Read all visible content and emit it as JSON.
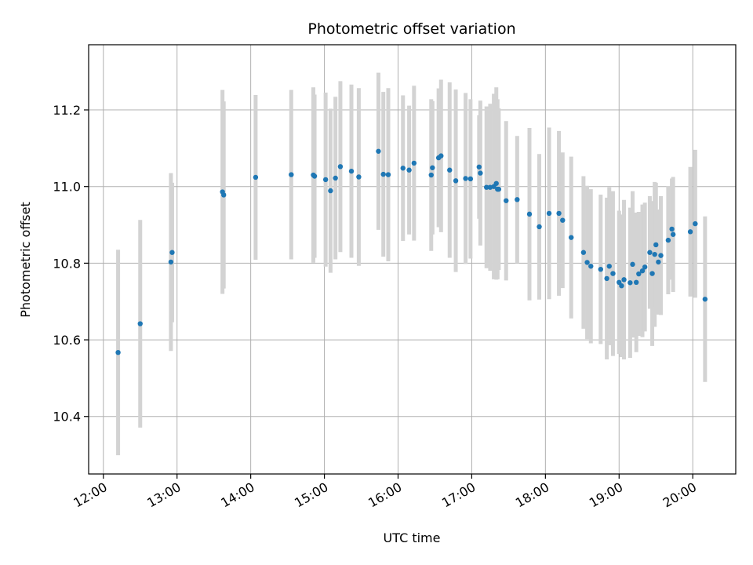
{
  "chart_data": {
    "type": "scatter",
    "title": "Photometric offset variation",
    "xlabel": "UTC time",
    "ylabel": "Photometric offset",
    "x_ticks": [
      "12:00",
      "13:00",
      "14:00",
      "15:00",
      "16:00",
      "17:00",
      "18:00",
      "19:00",
      "20:00"
    ],
    "y_ticks": [
      "10.4",
      "10.6",
      "10.8",
      "11.0",
      "11.2"
    ],
    "xlim": [
      "11:48",
      "20:35"
    ],
    "ylim": [
      10.25,
      11.37
    ],
    "grid": true,
    "colors": {
      "point": "#1f77b4",
      "errorbar": "#d3d3d3",
      "grid": "#b0b0b0"
    },
    "series": [
      {
        "x": [
          "12:12",
          "12:30",
          "12:55",
          "12:56",
          "13:37",
          "13:38",
          "14:04",
          "14:33",
          "14:51",
          "14:52",
          "15:01",
          "15:05",
          "15:09",
          "15:13",
          "15:22",
          "15:28",
          "15:44",
          "15:48",
          "15:52",
          "16:04",
          "16:09",
          "16:13",
          "16:27",
          "16:28",
          "16:33",
          "16:35",
          "16:42",
          "16:47",
          "16:55",
          "16:59",
          "17:06",
          "17:07",
          "17:12",
          "17:15",
          "17:18",
          "17:20",
          "17:21",
          "17:22",
          "17:28",
          "17:37",
          "17:47",
          "17:55",
          "18:03",
          "18:11",
          "18:14",
          "18:21",
          "18:31",
          "18:34",
          "18:37",
          "18:45",
          "18:50",
          "18:52",
          "18:55",
          "19:00",
          "19:02",
          "19:04",
          "19:09",
          "19:11",
          "19:14",
          "19:16",
          "19:19",
          "19:21",
          "19:25",
          "19:27",
          "19:29",
          "19:30",
          "19:32",
          "19:34",
          "19:40",
          "19:43",
          "19:44",
          "19:58",
          "20:02",
          "20:10"
        ],
        "y": [
          10.567,
          10.642,
          10.803,
          10.828,
          10.986,
          10.978,
          11.024,
          11.031,
          11.03,
          11.027,
          11.018,
          10.989,
          11.022,
          11.052,
          11.04,
          11.025,
          11.092,
          11.032,
          11.031,
          11.048,
          11.043,
          11.061,
          11.03,
          11.049,
          11.075,
          11.08,
          11.043,
          11.015,
          11.021,
          11.02,
          11.051,
          11.035,
          10.998,
          10.998,
          11.0,
          11.008,
          10.993,
          10.993,
          10.963,
          10.966,
          10.928,
          10.895,
          10.93,
          10.93,
          10.912,
          10.867,
          10.828,
          10.802,
          10.792,
          10.784,
          10.76,
          10.792,
          10.773,
          10.75,
          10.741,
          10.757,
          10.749,
          10.797,
          10.75,
          10.772,
          10.78,
          10.79,
          10.828,
          10.773,
          10.823,
          10.848,
          10.803,
          10.82,
          10.86,
          10.889,
          10.875,
          10.882,
          10.903,
          10.706
        ],
        "err": [
          0.268,
          0.271,
          0.232,
          0.182,
          0.266,
          0.244,
          0.215,
          0.221,
          0.229,
          0.213,
          0.227,
          0.214,
          0.212,
          0.223,
          0.226,
          0.232,
          0.205,
          0.215,
          0.226,
          0.19,
          0.168,
          0.202,
          0.198,
          0.174,
          0.181,
          0.199,
          0.229,
          0.238,
          0.223,
          0.208,
          0.135,
          0.189,
          0.211,
          0.218,
          0.242,
          0.251,
          0.235,
          0.211,
          0.208,
          0.166,
          0.225,
          0.19,
          0.224,
          0.215,
          0.177,
          0.211,
          0.199,
          0.2,
          0.201,
          0.195,
          0.211,
          0.206,
          0.215,
          0.187,
          0.186,
          0.208,
          0.196,
          0.191,
          0.182,
          0.162,
          0.173,
          0.168,
          0.147,
          0.189,
          0.189,
          0.162,
          0.137,
          0.155,
          0.141,
          0.132,
          0.15,
          0.169,
          0.193,
          0.216
        ]
      }
    ]
  }
}
